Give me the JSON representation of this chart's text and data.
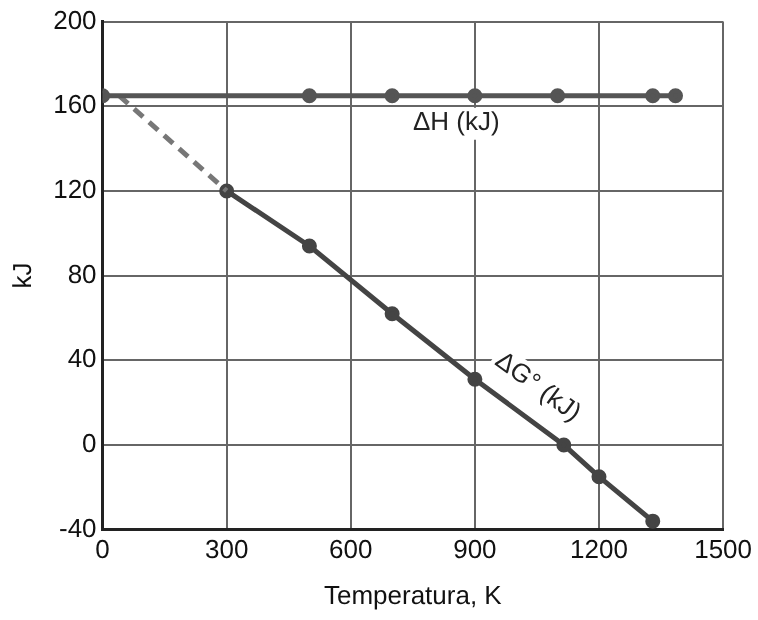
{
  "chart_data": {
    "type": "line",
    "xlabel": "Temperatura, K",
    "ylabel": "kJ",
    "xlim": [
      0,
      1500
    ],
    "xticks": [
      0,
      300,
      600,
      900,
      1200,
      1500
    ],
    "ylim": [
      -40,
      200
    ],
    "yticks": [
      -40,
      0,
      40,
      80,
      120,
      160,
      200
    ],
    "grid": true,
    "legend": false,
    "marker": "circle",
    "series": [
      {
        "name": "ΔH (kJ)",
        "color": "#555555",
        "x": [
          0,
          500,
          700,
          900,
          1100,
          1330,
          1385
        ],
        "values": [
          165,
          165,
          165,
          165,
          165,
          165,
          165
        ],
        "line_style": "solid"
      },
      {
        "color": "#777777",
        "x": [
          40,
          300
        ],
        "values": [
          165,
          120
        ],
        "line_style": "dashed",
        "marker": "none"
      },
      {
        "name": "ΔG° (kJ)",
        "color": "#444444",
        "x": [
          300,
          500,
          700,
          900,
          1115,
          1200,
          1330
        ],
        "values": [
          120,
          94,
          62,
          31,
          0,
          -15,
          -36
        ],
        "line_style": "solid"
      }
    ]
  }
}
